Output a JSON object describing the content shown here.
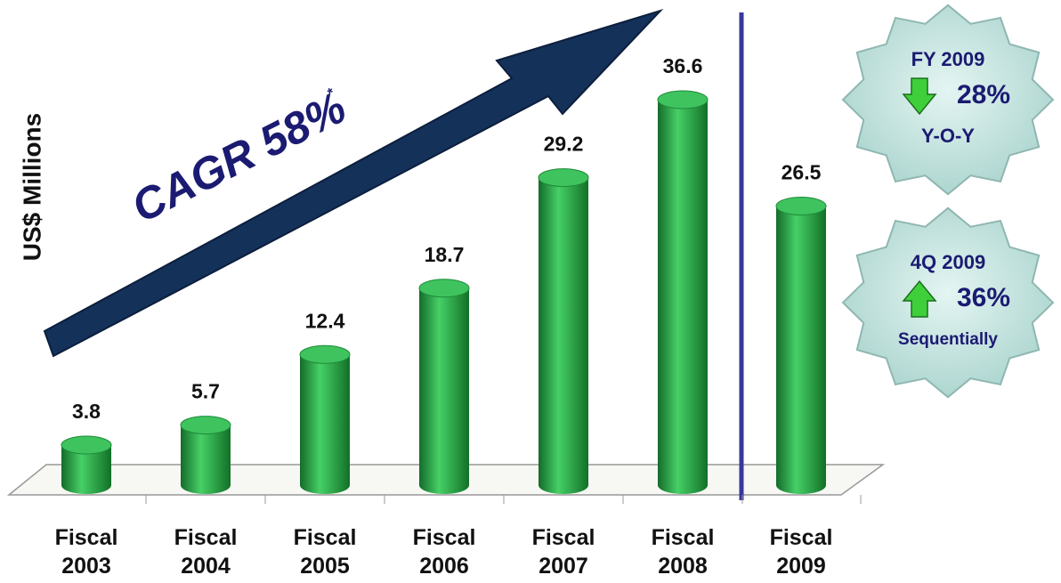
{
  "chart_data": {
    "type": "bar",
    "y_label": "US$ Millions",
    "categories": [
      "Fiscal 2003",
      "Fiscal 2004",
      "Fiscal 2005",
      "Fiscal 2006",
      "Fiscal 2007",
      "Fiscal 2008",
      "Fiscal 2009"
    ],
    "values": [
      3.8,
      5.7,
      12.4,
      18.7,
      29.2,
      36.6,
      26.5
    ],
    "color": "#2ca84a",
    "annotation": "CAGR 58%",
    "annotation_note": "*",
    "badges": [
      {
        "title": "FY 2009",
        "value": "28%",
        "caption": "Y-O-Y",
        "direction": "down"
      },
      {
        "title": "4Q 2009",
        "value": "36%",
        "caption": "Sequentially",
        "direction": "up"
      }
    ]
  }
}
